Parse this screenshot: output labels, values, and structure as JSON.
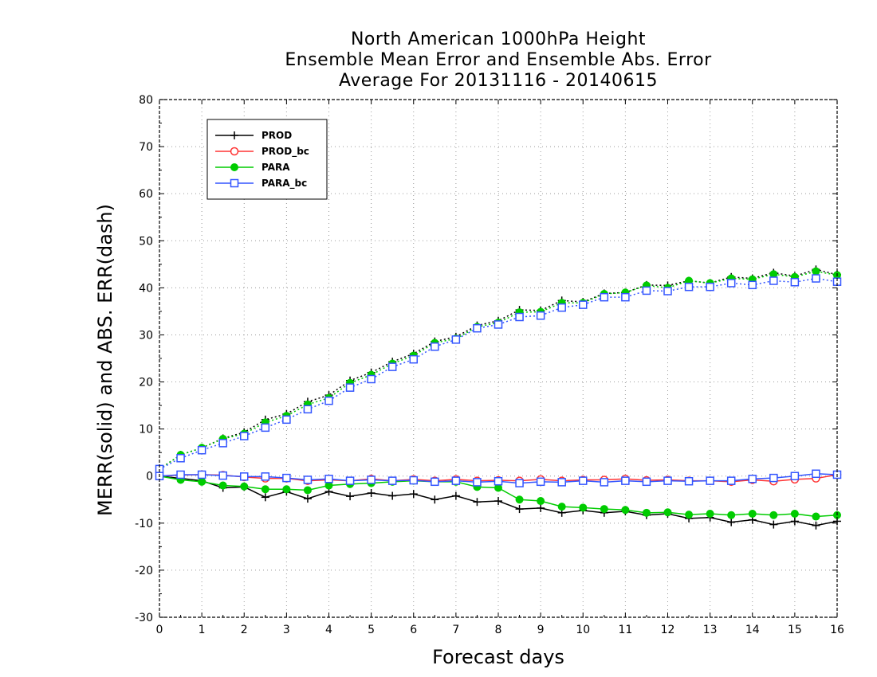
{
  "chart_data": {
    "type": "line",
    "title": [
      "North American 1000hPa Height",
      "Ensemble Mean Error and Ensemble Abs. Error",
      "Average For 20131116 - 20140615"
    ],
    "xlabel": "Forecast days",
    "ylabel": "MERR(solid) and ABS. ERR(dash)",
    "xlim": [
      0,
      16
    ],
    "ylim": [
      -30,
      80
    ],
    "xticks": [
      0,
      1,
      2,
      3,
      4,
      5,
      6,
      7,
      8,
      9,
      10,
      11,
      12,
      13,
      14,
      15,
      16
    ],
    "yticks": [
      -30,
      -20,
      -10,
      0,
      10,
      20,
      30,
      40,
      50,
      60,
      70,
      80
    ],
    "grid": true,
    "legend_position": "top-left",
    "x": [
      0,
      0.5,
      1,
      1.5,
      2,
      2.5,
      3,
      3.5,
      4,
      4.5,
      5,
      5.5,
      6,
      6.5,
      7,
      7.5,
      8,
      8.5,
      9,
      9.5,
      10,
      10.5,
      11,
      11.5,
      12,
      12.5,
      13,
      13.5,
      14,
      14.5,
      15,
      15.5,
      16
    ],
    "series": [
      {
        "name": "PROD",
        "color": "#000000",
        "marker": "plus",
        "merr": [
          0,
          -0.5,
          -1.0,
          -2.5,
          -2.3,
          -4.5,
          -3.3,
          -4.8,
          -3.3,
          -4.3,
          -3.6,
          -4.2,
          -3.8,
          -5.0,
          -4.2,
          -5.5,
          -5.3,
          -7.0,
          -6.8,
          -7.8,
          -7.3,
          -7.8,
          -7.5,
          -8.3,
          -8.0,
          -9.0,
          -8.8,
          -9.8,
          -9.3,
          -10.3,
          -9.6,
          -10.5,
          -9.6
        ],
        "abserr": [
          1.5,
          4.5,
          6.0,
          8.0,
          9.3,
          12.0,
          13.2,
          15.8,
          17.2,
          20.3,
          22.0,
          24.3,
          26.0,
          28.6,
          29.6,
          32.0,
          33.0,
          35.3,
          35.2,
          37.3,
          37.0,
          38.8,
          39.0,
          40.6,
          40.5,
          41.5,
          41.0,
          42.3,
          42.0,
          43.2,
          42.5,
          43.9,
          42.8
        ]
      },
      {
        "name": "PROD_bc",
        "color": "#ff3333",
        "marker": "circle-open",
        "merr": [
          0,
          0.2,
          0.3,
          0.2,
          -0.2,
          -0.5,
          -0.5,
          -1.0,
          -0.8,
          -1.0,
          -0.6,
          -1.0,
          -0.7,
          -1.0,
          -0.7,
          -1.0,
          -0.9,
          -1.0,
          -0.7,
          -1.0,
          -0.8,
          -0.8,
          -0.6,
          -0.9,
          -0.8,
          -1.0,
          -1.0,
          -1.2,
          -0.8,
          -1.1,
          -0.7,
          -0.5,
          0.3
        ],
        "abserr": []
      },
      {
        "name": "PARA",
        "color": "#00cc00",
        "marker": "circle-filled",
        "merr": [
          0,
          -0.8,
          -1.2,
          -2.0,
          -2.2,
          -2.8,
          -2.8,
          -3.0,
          -2.0,
          -1.7,
          -1.5,
          -1.2,
          -1.0,
          -1.2,
          -1.2,
          -2.3,
          -2.5,
          -5.0,
          -5.3,
          -6.5,
          -6.7,
          -7.0,
          -7.2,
          -7.8,
          -7.7,
          -8.2,
          -8.0,
          -8.3,
          -8.0,
          -8.3,
          -8.0,
          -8.6,
          -8.3
        ],
        "abserr": [
          1.5,
          4.5,
          6.0,
          7.9,
          9.0,
          11.4,
          12.8,
          15.2,
          16.6,
          19.8,
          21.5,
          23.9,
          25.6,
          28.3,
          29.2,
          31.7,
          32.6,
          34.8,
          34.9,
          36.8,
          36.8,
          38.7,
          39.0,
          40.5,
          40.0,
          41.5,
          41.0,
          42.0,
          41.8,
          42.9,
          42.3,
          43.5,
          42.7
        ]
      },
      {
        "name": "PARA_bc",
        "color": "#3355ff",
        "marker": "square-open",
        "merr": [
          0,
          0.3,
          0.3,
          0.1,
          -0.1,
          -0.1,
          -0.4,
          -0.8,
          -0.6,
          -1.0,
          -0.8,
          -1.0,
          -0.9,
          -1.2,
          -1.0,
          -1.3,
          -1.1,
          -1.5,
          -1.2,
          -1.3,
          -1.0,
          -1.3,
          -1.0,
          -1.2,
          -1.0,
          -1.1,
          -1.0,
          -1.0,
          -0.6,
          -0.4,
          0.0,
          0.5,
          0.3
        ],
        "abserr": [
          1.5,
          3.8,
          5.5,
          7.0,
          8.5,
          10.3,
          12.0,
          14.2,
          16.0,
          18.8,
          20.6,
          23.2,
          24.8,
          27.5,
          29.0,
          31.4,
          32.2,
          33.8,
          34.1,
          35.8,
          36.4,
          38.0,
          38.0,
          39.4,
          39.3,
          40.2,
          40.2,
          41.0,
          40.6,
          41.5,
          41.2,
          42.0,
          41.3
        ]
      }
    ]
  }
}
